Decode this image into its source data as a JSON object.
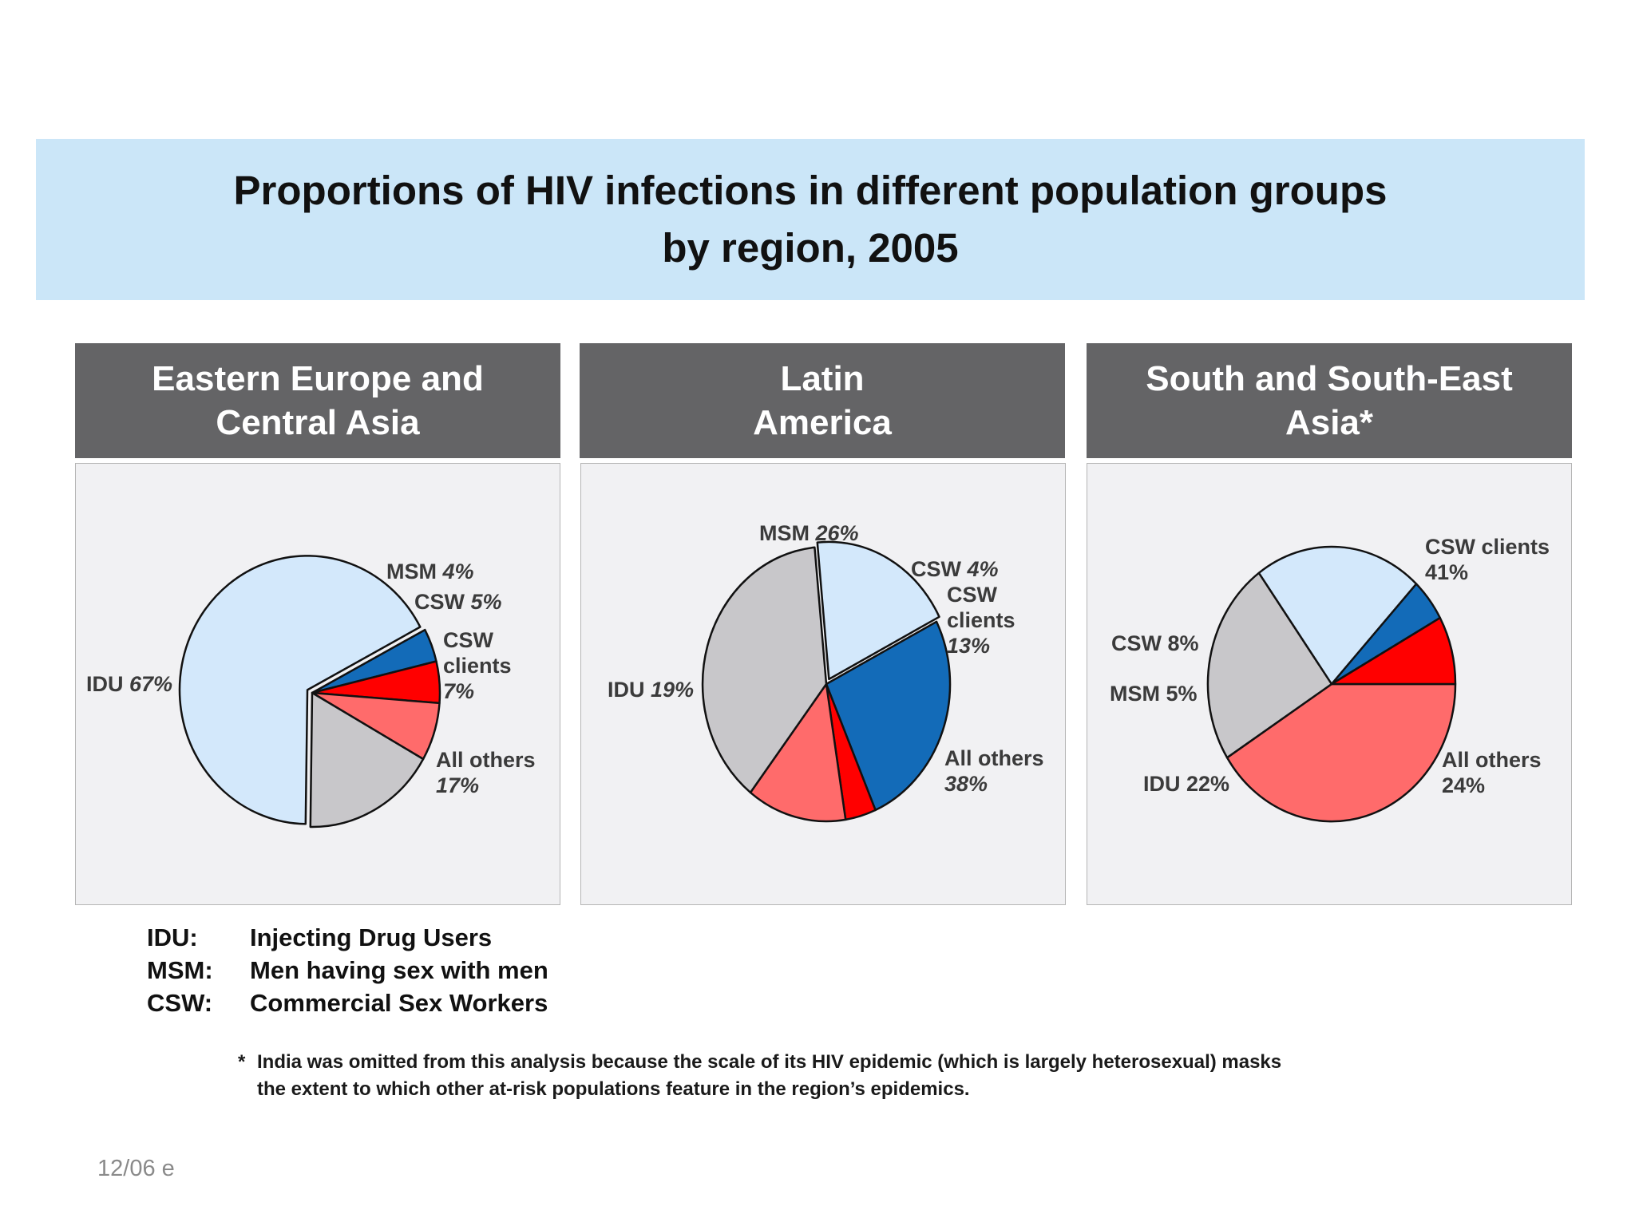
{
  "title": {
    "line1": "Proportions of HIV infections in different population groups",
    "line2": "by region, 2005"
  },
  "colors": {
    "title_band": "#cbe6f8",
    "header_band": "#646466",
    "panel": "#f1f1f3",
    "IDU": "#d3e8fb",
    "MSM": "#136bb8",
    "CSW": "#ff0000",
    "CSW clients": "#ff6b6b",
    "All others": "#c8c7ca"
  },
  "chart_data": [
    {
      "type": "pie",
      "title_lines": [
        "Eastern Europe and",
        "Central Asia"
      ],
      "slices": [
        {
          "key": "MSM",
          "value": 4,
          "label_lines": [
            "MSM",
            "4%"
          ]
        },
        {
          "key": "CSW",
          "value": 5,
          "label_lines": [
            "CSW",
            "5%"
          ]
        },
        {
          "key": "CSW clients",
          "value": 7,
          "label_lines": [
            "CSW",
            "clients",
            "7%"
          ]
        },
        {
          "key": "All others",
          "value": 17,
          "label_lines": [
            "All others",
            "17%"
          ]
        },
        {
          "key": "IDU",
          "value": 67,
          "label_lines": [
            "IDU",
            "67%"
          ]
        }
      ]
    },
    {
      "type": "pie",
      "title_lines": [
        "Latin",
        "America"
      ],
      "slices": [
        {
          "key": "MSM",
          "value": 26,
          "label_lines": [
            "MSM",
            "26%"
          ]
        },
        {
          "key": "CSW",
          "value": 4,
          "label_lines": [
            "CSW",
            "4%"
          ]
        },
        {
          "key": "CSW clients",
          "value": 13,
          "label_lines": [
            "CSW",
            "clients",
            "13%"
          ]
        },
        {
          "key": "All others",
          "value": 38,
          "label_lines": [
            "All others",
            "38%"
          ]
        },
        {
          "key": "IDU",
          "value": 19,
          "label_lines": [
            "IDU",
            "19%"
          ]
        }
      ]
    },
    {
      "type": "pie",
      "title_lines": [
        "South and South-East",
        "Asia*"
      ],
      "slices": [
        {
          "key": "CSW clients",
          "value": 41,
          "label_lines": [
            "CSW clients",
            "41%"
          ]
        },
        {
          "key": "All others",
          "value": 24,
          "label_lines": [
            "All others",
            "24%"
          ]
        },
        {
          "key": "IDU",
          "value": 22,
          "label_lines": [
            "IDU",
            "22%"
          ]
        },
        {
          "key": "MSM",
          "value": 5,
          "label_lines": [
            "MSM",
            "5%"
          ]
        },
        {
          "key": "CSW",
          "value": 8,
          "label_lines": [
            "CSW",
            "8%"
          ]
        }
      ]
    }
  ],
  "legend": [
    {
      "abbr": "IDU:",
      "meaning": "Injecting Drug Users"
    },
    {
      "abbr": "MSM:",
      "meaning": "Men having sex with men"
    },
    {
      "abbr": "CSW:",
      "meaning": "Commercial Sex Workers"
    }
  ],
  "footnote": {
    "star": "*",
    "line1": "India was omitted from this analysis because the scale of its HIV epidemic (which is largely heterosexual) masks",
    "line2": "the extent to which other at-risk populations feature in the region’s epidemics."
  },
  "page_stamp": "12/06  e"
}
